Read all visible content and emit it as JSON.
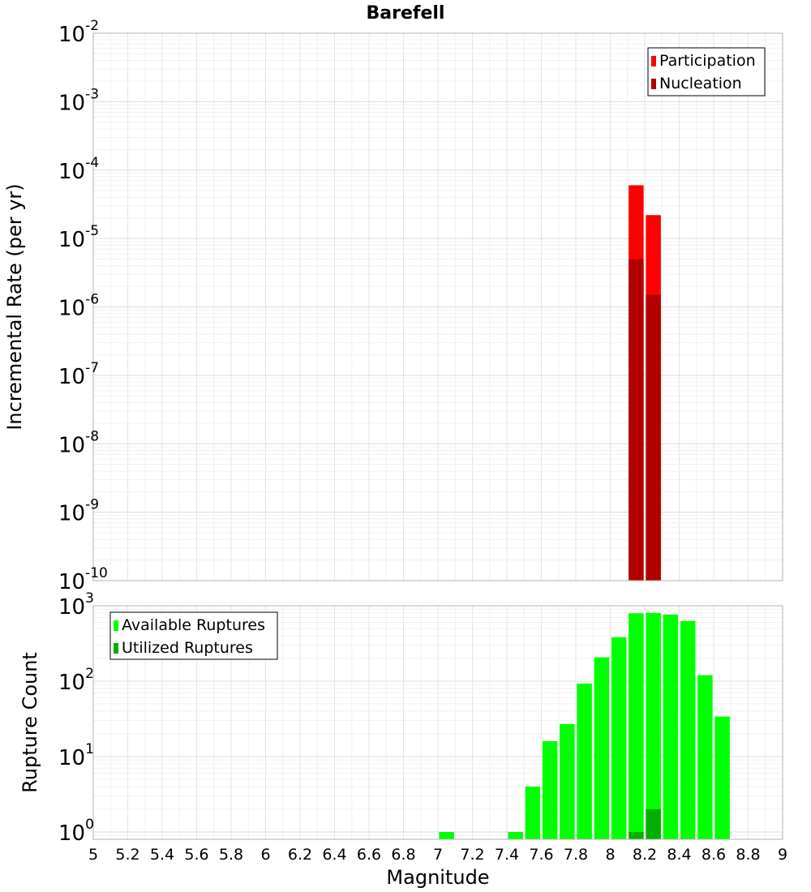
{
  "chart_data": [
    {
      "type": "bar",
      "title": "Barefell",
      "xlabel": "",
      "ylabel": "Incremental Rate (per yr)",
      "yscale": "log",
      "ylim": [
        1e-10,
        0.01
      ],
      "xlim": [
        5,
        9
      ],
      "y_ticks": [
        {
          "base": "10",
          "exp": "-2"
        },
        {
          "base": "10",
          "exp": "-3"
        },
        {
          "base": "10",
          "exp": "-4"
        },
        {
          "base": "10",
          "exp": "-5"
        },
        {
          "base": "10",
          "exp": "-6"
        },
        {
          "base": "10",
          "exp": "-7"
        },
        {
          "base": "10",
          "exp": "-8"
        },
        {
          "base": "10",
          "exp": "-9"
        },
        {
          "base": "10",
          "exp": "-10"
        }
      ],
      "grid": true,
      "legend_position": "top-right",
      "series": [
        {
          "name": "Participation",
          "color": "#ff0000",
          "x": [
            8.15,
            8.25
          ],
          "values": [
            6e-05,
            2.2e-05
          ]
        },
        {
          "name": "Nucleation",
          "color": "#b20000",
          "x": [
            8.15,
            8.25
          ],
          "values": [
            5e-06,
            1.5e-06
          ]
        }
      ]
    },
    {
      "type": "bar",
      "title": "",
      "xlabel": "Magnitude",
      "ylabel": "Rupture Count",
      "yscale": "log",
      "ylim": [
        0.8,
        1000
      ],
      "xlim": [
        5,
        9
      ],
      "x_ticks": [
        "5",
        "5.2",
        "5.4",
        "5.6",
        "5.8",
        "6",
        "6.2",
        "6.4",
        "6.6",
        "6.8",
        "7",
        "7.2",
        "7.4",
        "7.6",
        "7.8",
        "8",
        "8.2",
        "8.4",
        "8.6",
        "8.8",
        "9"
      ],
      "y_ticks": [
        {
          "base": "10",
          "exp": "3"
        },
        {
          "base": "10",
          "exp": "2"
        },
        {
          "base": "10",
          "exp": "1"
        },
        {
          "base": "10",
          "exp": "0"
        }
      ],
      "grid": true,
      "legend_position": "top-left",
      "series": [
        {
          "name": "Available Ruptures",
          "color": "#00ff00",
          "x": [
            7.05,
            7.45,
            7.55,
            7.65,
            7.75,
            7.85,
            7.95,
            8.05,
            8.15,
            8.25,
            8.35,
            8.45,
            8.55,
            8.65
          ],
          "values": [
            1,
            1,
            4,
            16,
            27,
            93,
            207,
            383,
            796,
            805,
            766,
            630,
            120,
            34
          ]
        },
        {
          "name": "Utilized Ruptures",
          "color": "#00b000",
          "x": [
            8.15,
            8.25
          ],
          "values": [
            1,
            2
          ]
        }
      ]
    }
  ]
}
